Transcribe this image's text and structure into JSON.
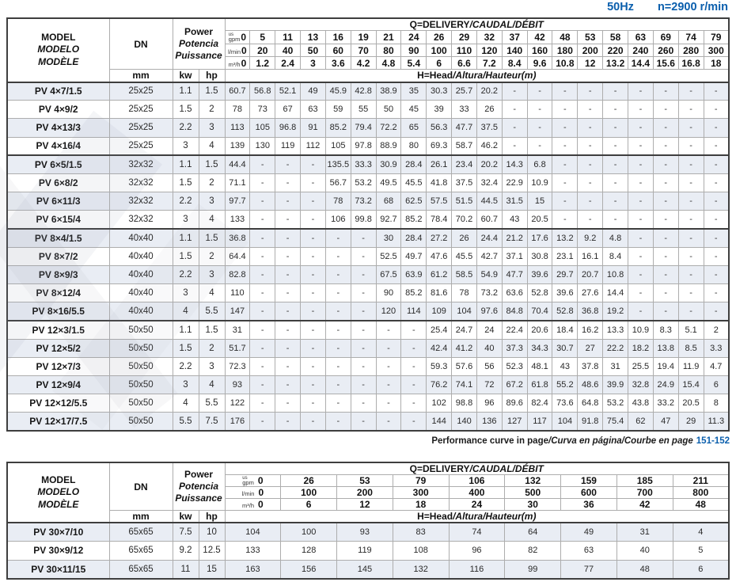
{
  "meta": {
    "frequency": "50Hz",
    "speed": "n=2900 r/min",
    "accent_blue": "#0b5fad",
    "shade_row_color": "#e9edf4",
    "border_dark": "#3e3e3e",
    "border_light": "#adadad"
  },
  "labels": {
    "model": [
      "MODEL",
      "MODELO",
      "MODÈLE"
    ],
    "dn": "DN",
    "mm": "mm",
    "power": [
      "Power",
      "Potencia",
      "Puissance"
    ],
    "kw": "kw",
    "hp": "hp",
    "us": "us",
    "gpm": "gpm",
    "lmin": "l/min",
    "m3h": "m³/h",
    "q_main": "Q=DELIVERY",
    "q_rest": "/CAUDAL/DÉBIT",
    "h_main": "H=Head",
    "h_rest": "/Altura/Hauteur(m)"
  },
  "note": {
    "main": "Performance curve in page",
    "rest": "/Curva en página/Courbe en page",
    "pages": "151-152"
  },
  "table1": {
    "gpm": [
      "0",
      "5",
      "11",
      "13",
      "16",
      "19",
      "21",
      "24",
      "26",
      "29",
      "32",
      "37",
      "42",
      "48",
      "53",
      "58",
      "63",
      "69",
      "74",
      "79"
    ],
    "lmin": [
      "0",
      "20",
      "40",
      "50",
      "60",
      "70",
      "80",
      "90",
      "100",
      "110",
      "120",
      "140",
      "160",
      "180",
      "200",
      "220",
      "240",
      "260",
      "280",
      "300"
    ],
    "m3h": [
      "0",
      "1.2",
      "2.4",
      "3",
      "3.6",
      "4.2",
      "4.8",
      "5.4",
      "6",
      "6.6",
      "7.2",
      "8.4",
      "9.6",
      "10.8",
      "12",
      "13.2",
      "14.4",
      "15.6",
      "16.8",
      "18"
    ],
    "group_starts": [
      4,
      8,
      13
    ],
    "rows": [
      {
        "model": "PV 4×7/1.5",
        "dn": "25x25",
        "kw": "1.1",
        "hp": "1.5",
        "values": [
          "60.7",
          "56.8",
          "52.1",
          "49",
          "45.9",
          "42.8",
          "38.9",
          "35",
          "30.3",
          "25.7",
          "20.2",
          "-",
          "-",
          "-",
          "-",
          "-",
          "-",
          "-",
          "-",
          "-"
        ]
      },
      {
        "model": "PV 4×9/2",
        "dn": "25x25",
        "kw": "1.5",
        "hp": "2",
        "values": [
          "78",
          "73",
          "67",
          "63",
          "59",
          "55",
          "50",
          "45",
          "39",
          "33",
          "26",
          "-",
          "-",
          "-",
          "-",
          "-",
          "-",
          "-",
          "-",
          "-"
        ]
      },
      {
        "model": "PV 4×13/3",
        "dn": "25x25",
        "kw": "2.2",
        "hp": "3",
        "values": [
          "113",
          "105",
          "96.8",
          "91",
          "85.2",
          "79.4",
          "72.2",
          "65",
          "56.3",
          "47.7",
          "37.5",
          "-",
          "-",
          "-",
          "-",
          "-",
          "-",
          "-",
          "-",
          "-"
        ]
      },
      {
        "model": "PV 4×16/4",
        "dn": "25x25",
        "kw": "3",
        "hp": "4",
        "values": [
          "139",
          "130",
          "119",
          "112",
          "105",
          "97.8",
          "88.9",
          "80",
          "69.3",
          "58.7",
          "46.2",
          "-",
          "-",
          "-",
          "-",
          "-",
          "-",
          "-",
          "-",
          "-"
        ]
      },
      {
        "model": "PV 6×5/1.5",
        "dn": "32x32",
        "kw": "1.1",
        "hp": "1.5",
        "values": [
          "44.4",
          "-",
          "-",
          "-",
          "135.5",
          "33.3",
          "30.9",
          "28.4",
          "26.1",
          "23.4",
          "20.2",
          "14.3",
          "6.8",
          "-",
          "-",
          "-",
          "-",
          "-",
          "-",
          "-"
        ]
      },
      {
        "model": "PV 6×8/2",
        "dn": "32x32",
        "kw": "1.5",
        "hp": "2",
        "values": [
          "71.1",
          "-",
          "-",
          "-",
          "56.7",
          "53.2",
          "49.5",
          "45.5",
          "41.8",
          "37.5",
          "32.4",
          "22.9",
          "10.9",
          "-",
          "-",
          "-",
          "-",
          "-",
          "-",
          "-"
        ]
      },
      {
        "model": "PV 6×11/3",
        "dn": "32x32",
        "kw": "2.2",
        "hp": "3",
        "values": [
          "97.7",
          "-",
          "-",
          "-",
          "78",
          "73.2",
          "68",
          "62.5",
          "57.5",
          "51.5",
          "44.5",
          "31.5",
          "15",
          "-",
          "-",
          "-",
          "-",
          "-",
          "-",
          "-"
        ]
      },
      {
        "model": "PV 6×15/4",
        "dn": "32x32",
        "kw": "3",
        "hp": "4",
        "values": [
          "133",
          "-",
          "-",
          "-",
          "106",
          "99.8",
          "92.7",
          "85.2",
          "78.4",
          "70.2",
          "60.7",
          "43",
          "20.5",
          "-",
          "-",
          "-",
          "-",
          "-",
          "-",
          "-"
        ]
      },
      {
        "model": "PV 8×4/1.5",
        "dn": "40x40",
        "kw": "1.1",
        "hp": "1.5",
        "values": [
          "36.8",
          "-",
          "-",
          "-",
          "-",
          "-",
          "30",
          "28.4",
          "27.2",
          "26",
          "24.4",
          "21.2",
          "17.6",
          "13.2",
          "9.2",
          "4.8",
          "-",
          "-",
          "-",
          "-"
        ]
      },
      {
        "model": "PV 8×7/2",
        "dn": "40x40",
        "kw": "1.5",
        "hp": "2",
        "values": [
          "64.4",
          "-",
          "-",
          "-",
          "-",
          "-",
          "52.5",
          "49.7",
          "47.6",
          "45.5",
          "42.7",
          "37.1",
          "30.8",
          "23.1",
          "16.1",
          "8.4",
          "-",
          "-",
          "-",
          "-"
        ]
      },
      {
        "model": "PV 8×9/3",
        "dn": "40x40",
        "kw": "2.2",
        "hp": "3",
        "values": [
          "82.8",
          "-",
          "-",
          "-",
          "-",
          "-",
          "67.5",
          "63.9",
          "61.2",
          "58.5",
          "54.9",
          "47.7",
          "39.6",
          "29.7",
          "20.7",
          "10.8",
          "-",
          "-",
          "-",
          "-"
        ]
      },
      {
        "model": "PV 8×12/4",
        "dn": "40x40",
        "kw": "3",
        "hp": "4",
        "values": [
          "110",
          "-",
          "-",
          "-",
          "-",
          "-",
          "90",
          "85.2",
          "81.6",
          "78",
          "73.2",
          "63.6",
          "52.8",
          "39.6",
          "27.6",
          "14.4",
          "-",
          "-",
          "-",
          "-"
        ]
      },
      {
        "model": "PV 8×16/5.5",
        "dn": "40x40",
        "kw": "4",
        "hp": "5.5",
        "values": [
          "147",
          "-",
          "-",
          "-",
          "-",
          "-",
          "120",
          "114",
          "109",
          "104",
          "97.6",
          "84.8",
          "70.4",
          "52.8",
          "36.8",
          "19.2",
          "-",
          "-",
          "-",
          "-"
        ]
      },
      {
        "model": "PV 12×3/1.5",
        "dn": "50x50",
        "kw": "1.1",
        "hp": "1.5",
        "values": [
          "31",
          "-",
          "-",
          "-",
          "-",
          "-",
          "-",
          "-",
          "25.4",
          "24.7",
          "24",
          "22.4",
          "20.6",
          "18.4",
          "16.2",
          "13.3",
          "10.9",
          "8.3",
          "5.1",
          "2"
        ]
      },
      {
        "model": "PV 12×5/2",
        "dn": "50x50",
        "kw": "1.5",
        "hp": "2",
        "values": [
          "51.7",
          "-",
          "-",
          "-",
          "-",
          "-",
          "-",
          "-",
          "42.4",
          "41.2",
          "40",
          "37.3",
          "34.3",
          "30.7",
          "27",
          "22.2",
          "18.2",
          "13.8",
          "8.5",
          "3.3"
        ]
      },
      {
        "model": "PV 12×7/3",
        "dn": "50x50",
        "kw": "2.2",
        "hp": "3",
        "values": [
          "72.3",
          "-",
          "-",
          "-",
          "-",
          "-",
          "-",
          "-",
          "59.3",
          "57.6",
          "56",
          "52.3",
          "48.1",
          "43",
          "37.8",
          "31",
          "25.5",
          "19.4",
          "11.9",
          "4.7"
        ]
      },
      {
        "model": "PV 12×9/4",
        "dn": "50x50",
        "kw": "3",
        "hp": "4",
        "values": [
          "93",
          "-",
          "-",
          "-",
          "-",
          "-",
          "-",
          "-",
          "76.2",
          "74.1",
          "72",
          "67.2",
          "61.8",
          "55.2",
          "48.6",
          "39.9",
          "32.8",
          "24.9",
          "15.4",
          "6"
        ]
      },
      {
        "model": "PV 12×12/5.5",
        "dn": "50x50",
        "kw": "4",
        "hp": "5.5",
        "values": [
          "122",
          "-",
          "-",
          "-",
          "-",
          "-",
          "-",
          "-",
          "102",
          "98.8",
          "96",
          "89.6",
          "82.4",
          "73.6",
          "64.8",
          "53.2",
          "43.8",
          "33.2",
          "20.5",
          "8"
        ]
      },
      {
        "model": "PV 12×17/7.5",
        "dn": "50x50",
        "kw": "5.5",
        "hp": "7.5",
        "values": [
          "176",
          "-",
          "-",
          "-",
          "-",
          "-",
          "-",
          "-",
          "144",
          "140",
          "136",
          "127",
          "117",
          "104",
          "91.8",
          "75.4",
          "62",
          "47",
          "29",
          "11.3"
        ]
      }
    ]
  },
  "table2": {
    "gpm": [
      "0",
      "26",
      "53",
      "79",
      "106",
      "132",
      "159",
      "185",
      "211"
    ],
    "lmin": [
      "0",
      "100",
      "200",
      "300",
      "400",
      "500",
      "600",
      "700",
      "800"
    ],
    "m3h": [
      "0",
      "6",
      "12",
      "18",
      "24",
      "30",
      "36",
      "42",
      "48"
    ],
    "group_starts": [],
    "rows": [
      {
        "model": "PV 30×7/10",
        "dn": "65x65",
        "kw": "7.5",
        "hp": "10",
        "values": [
          "104",
          "100",
          "93",
          "83",
          "74",
          "64",
          "49",
          "31",
          "4"
        ]
      },
      {
        "model": "PV 30×9/12",
        "dn": "65x65",
        "kw": "9.2",
        "hp": "12.5",
        "values": [
          "133",
          "128",
          "119",
          "108",
          "96",
          "82",
          "63",
          "40",
          "5"
        ]
      },
      {
        "model": "PV 30×11/15",
        "dn": "65x65",
        "kw": "11",
        "hp": "15",
        "values": [
          "163",
          "156",
          "145",
          "132",
          "116",
          "99",
          "77",
          "48",
          "6"
        ]
      }
    ]
  }
}
